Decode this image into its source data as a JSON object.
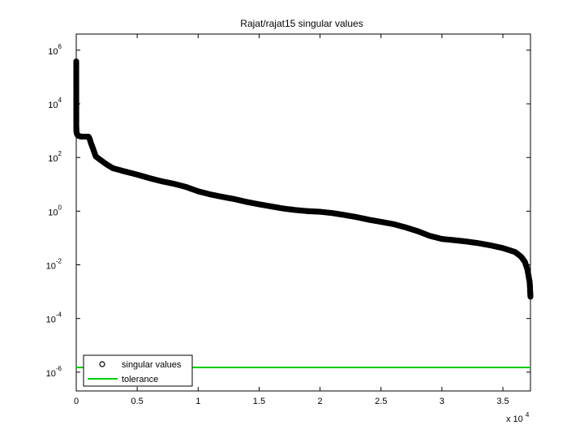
{
  "chart_data": {
    "type": "scatter",
    "title": "Rajat/rajat15 singular values",
    "xlabel": "",
    "ylabel": "",
    "x_scale": "linear",
    "y_scale": "log",
    "xlim": [
      0,
      37261
    ],
    "ylim_log10": [
      -6.7,
      6.6
    ],
    "x_multiplier_label": {
      "base": "x 10",
      "exp": "4"
    },
    "x_ticks": [
      {
        "value": 0,
        "label": "0"
      },
      {
        "value": 5000,
        "label": "0.5"
      },
      {
        "value": 10000,
        "label": "1"
      },
      {
        "value": 15000,
        "label": "1.5"
      },
      {
        "value": 20000,
        "label": "2"
      },
      {
        "value": 25000,
        "label": "2.5"
      },
      {
        "value": 30000,
        "label": "3"
      },
      {
        "value": 35000,
        "label": "3.5"
      }
    ],
    "y_ticks": [
      {
        "log10": 6,
        "base": "10",
        "exp": "6"
      },
      {
        "log10": 4,
        "base": "10",
        "exp": "4"
      },
      {
        "log10": 2,
        "base": "10",
        "exp": "2"
      },
      {
        "log10": 0,
        "base": "10",
        "exp": "0"
      },
      {
        "log10": -2,
        "base": "10",
        "exp": "-2"
      },
      {
        "log10": -4,
        "base": "10",
        "exp": "-4"
      },
      {
        "log10": -6,
        "base": "10",
        "exp": "-6"
      }
    ],
    "grid": false,
    "legend_position": "bottom-left",
    "series": [
      {
        "name": "singular values",
        "marker": "circle",
        "color": "#000000",
        "points": [
          [
            0,
            380000
          ],
          [
            1,
            300000
          ],
          [
            5,
            1500
          ],
          [
            20,
            900
          ],
          [
            60,
            750
          ],
          [
            150,
            650
          ],
          [
            400,
            600
          ],
          [
            800,
            600
          ],
          [
            1000,
            600
          ],
          [
            1100,
            500
          ],
          [
            1200,
            350
          ],
          [
            1400,
            200
          ],
          [
            1600,
            110
          ],
          [
            2000,
            80
          ],
          [
            2500,
            55
          ],
          [
            3000,
            40
          ],
          [
            4000,
            30
          ],
          [
            5000,
            23
          ],
          [
            6000,
            17
          ],
          [
            7000,
            13
          ],
          [
            8000,
            10.5
          ],
          [
            9000,
            8
          ],
          [
            10000,
            5.5
          ],
          [
            11000,
            4.2
          ],
          [
            12000,
            3.4
          ],
          [
            13000,
            2.8
          ],
          [
            14000,
            2.2
          ],
          [
            15000,
            1.8
          ],
          [
            16000,
            1.5
          ],
          [
            17000,
            1.25
          ],
          [
            18000,
            1.1
          ],
          [
            19000,
            1.0
          ],
          [
            20000,
            0.95
          ],
          [
            21000,
            0.85
          ],
          [
            22000,
            0.72
          ],
          [
            23000,
            0.6
          ],
          [
            24000,
            0.48
          ],
          [
            25000,
            0.4
          ],
          [
            26000,
            0.33
          ],
          [
            27000,
            0.25
          ],
          [
            28000,
            0.18
          ],
          [
            29000,
            0.12
          ],
          [
            30000,
            0.092
          ],
          [
            31000,
            0.083
          ],
          [
            32000,
            0.074
          ],
          [
            33000,
            0.064
          ],
          [
            34000,
            0.053
          ],
          [
            35000,
            0.042
          ],
          [
            36000,
            0.03
          ],
          [
            36500,
            0.02
          ],
          [
            36800,
            0.013
          ],
          [
            37000,
            0.007
          ],
          [
            37100,
            0.004
          ],
          [
            37200,
            0.0022
          ],
          [
            37260,
            0.00065
          ]
        ]
      },
      {
        "name": "tolerance",
        "marker": "line",
        "color": "#00cc00",
        "value": 1.5e-06
      }
    ]
  }
}
